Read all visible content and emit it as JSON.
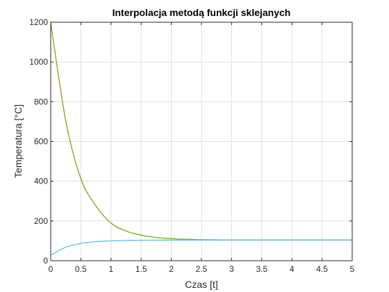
{
  "chart_data": {
    "type": "line",
    "title": "Interpolacja metodą funkcji sklejanych",
    "xlabel": "Czas [t]",
    "ylabel": "Temperatura [°C]",
    "xlim": [
      0,
      5
    ],
    "ylim": [
      0,
      1200
    ],
    "grid": true,
    "x_ticks": [
      "0",
      "0.5",
      "1",
      "1.5",
      "2",
      "2.5",
      "3",
      "3.5",
      "4",
      "4.5",
      "5"
    ],
    "y_ticks": [
      "0",
      "200",
      "400",
      "600",
      "800",
      "1000",
      "1200"
    ],
    "series": [
      {
        "color": "#EDB120",
        "x": [
          0,
          0.25,
          0.5,
          0.75,
          1,
          1.25,
          1.5,
          1.75,
          2,
          2.25,
          2.5,
          2.75,
          3,
          3.5,
          4,
          4.5,
          5
        ],
        "y": [
          1200,
          700,
          415,
          275,
          190,
          150,
          128,
          117,
          112,
          108,
          106,
          105,
          104,
          104,
          104,
          104,
          104
        ]
      },
      {
        "color": "#77AC30",
        "x": [
          0,
          0.25,
          0.5,
          0.75,
          1,
          1.25,
          1.5,
          1.75,
          2,
          2.25,
          2.5,
          2.75,
          3,
          3.5,
          4,
          4.5,
          5
        ],
        "y": [
          1200,
          705,
          412,
          276,
          189,
          149,
          129,
          117,
          111,
          108,
          106,
          105,
          104,
          104,
          104,
          104,
          104
        ]
      },
      {
        "color": "#4DBEEE",
        "x": [
          0,
          0.25,
          0.5,
          0.75,
          1,
          1.25,
          1.5,
          2,
          2.5,
          3,
          3.5,
          4,
          4.5,
          5
        ],
        "y": [
          28,
          68,
          87,
          96,
          100,
          102,
          103,
          104,
          104,
          104,
          104,
          104,
          104,
          104
        ]
      }
    ]
  }
}
